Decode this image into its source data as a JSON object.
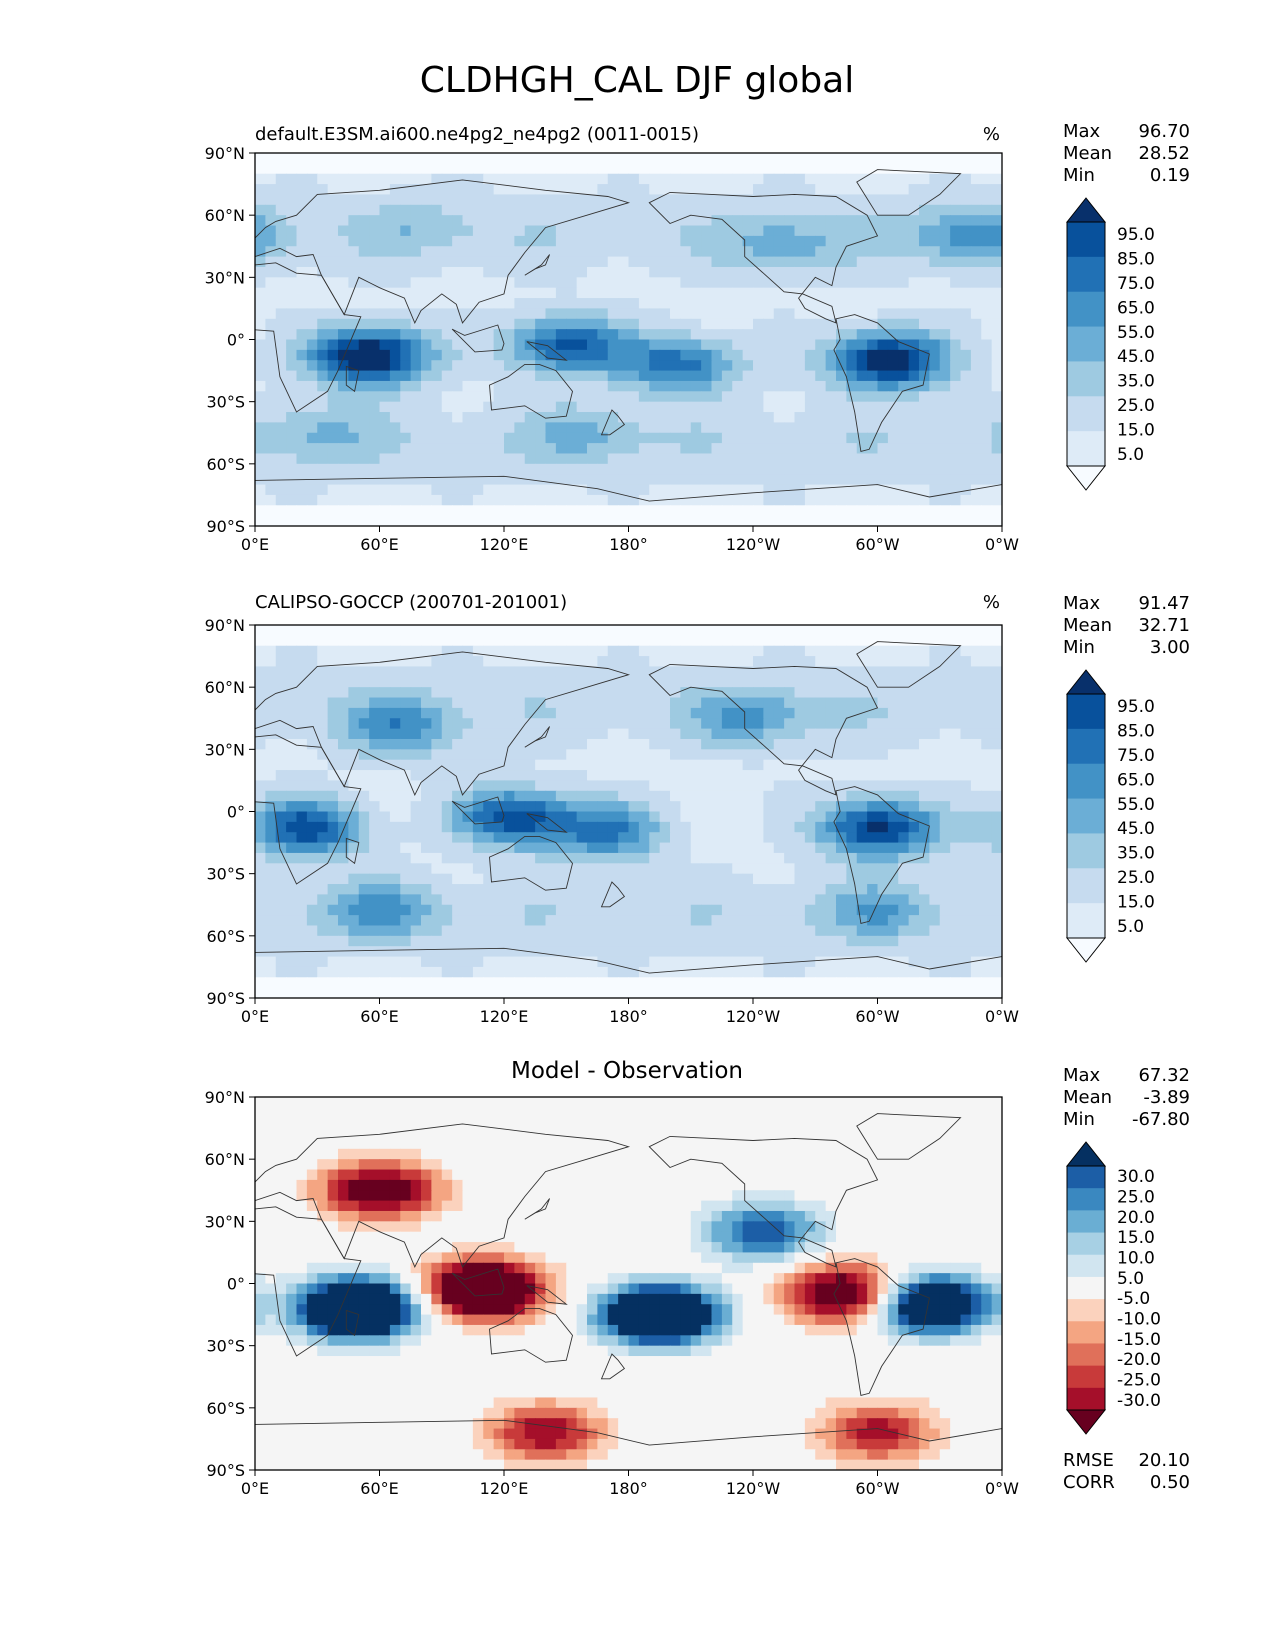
{
  "title": "CLDHGH_CAL DJF global",
  "chart_data": [
    {
      "type": "heatmap",
      "title": "default.E3SM.ai600.ne4pg2_ne4pg2 (0011-0015)",
      "units": "%",
      "x_ticks": [
        "0°E",
        "60°E",
        "120°E",
        "180°",
        "120°W",
        "60°W",
        "0°W"
      ],
      "y_ticks": [
        "90°N",
        "60°N",
        "30°N",
        "0°",
        "30°S",
        "60°S",
        "90°S"
      ],
      "xlim": [
        0,
        360
      ],
      "ylim": [
        -90,
        90
      ],
      "stats": [
        {
          "label": "Max",
          "value": "96.70"
        },
        {
          "label": "Mean",
          "value": "28.52"
        },
        {
          "label": "Min",
          "value": "0.19"
        }
      ],
      "colorbar": {
        "levels": [
          "95.0",
          "85.0",
          "75.0",
          "65.0",
          "55.0",
          "45.0",
          "35.0",
          "25.0",
          "15.0",
          "5.0"
        ],
        "colors": [
          "#f7fbff",
          "#deebf7",
          "#c6dbef",
          "#9ecae1",
          "#6baed6",
          "#4292c6",
          "#2171b5",
          "#08519c",
          "#08306b"
        ],
        "extend": "both"
      },
      "features": [
        {
          "lon": 55,
          "lat": -8,
          "value": 92
        },
        {
          "lon": 150,
          "lat": -3,
          "value": 70
        },
        {
          "lon": 205,
          "lat": -12,
          "value": 62
        },
        {
          "lon": 305,
          "lat": -10,
          "value": 88
        },
        {
          "lon": 80,
          "lat": 55,
          "value": 25
        },
        {
          "lon": 255,
          "lat": 45,
          "value": 35
        },
        {
          "lon": 345,
          "lat": 50,
          "value": 45
        },
        {
          "lon": 160,
          "lat": -45,
          "value": 30
        },
        {
          "lon": 30,
          "lat": -45,
          "value": 30
        }
      ]
    },
    {
      "type": "heatmap",
      "title": "CALIPSO-GOCCP (200701-201001)",
      "units": "%",
      "x_ticks": [
        "0°E",
        "60°E",
        "120°E",
        "180°",
        "120°W",
        "60°W",
        "0°W"
      ],
      "y_ticks": [
        "90°N",
        "60°N",
        "30°N",
        "0°",
        "30°S",
        "60°S",
        "90°S"
      ],
      "xlim": [
        0,
        360
      ],
      "ylim": [
        -90,
        90
      ],
      "stats": [
        {
          "label": "Max",
          "value": "91.47"
        },
        {
          "label": "Mean",
          "value": "32.71"
        },
        {
          "label": "Min",
          "value": "3.00"
        }
      ],
      "colorbar": {
        "levels": [
          "95.0",
          "85.0",
          "75.0",
          "65.0",
          "55.0",
          "45.0",
          "35.0",
          "25.0",
          "15.0",
          "5.0"
        ],
        "colors": [
          "#f7fbff",
          "#deebf7",
          "#c6dbef",
          "#9ecae1",
          "#6baed6",
          "#4292c6",
          "#2171b5",
          "#08519c",
          "#08306b"
        ],
        "extend": "both"
      },
      "features": [
        {
          "lon": 25,
          "lat": -8,
          "value": 70
        },
        {
          "lon": 125,
          "lat": -3,
          "value": 72
        },
        {
          "lon": 170,
          "lat": -10,
          "value": 55
        },
        {
          "lon": 300,
          "lat": -8,
          "value": 80
        },
        {
          "lon": 70,
          "lat": 40,
          "value": 45
        },
        {
          "lon": 240,
          "lat": 45,
          "value": 40
        },
        {
          "lon": 60,
          "lat": -48,
          "value": 40
        },
        {
          "lon": 300,
          "lat": -48,
          "value": 35
        }
      ]
    },
    {
      "type": "heatmap",
      "title": "Model - Observation",
      "x_ticks": [
        "0°E",
        "60°E",
        "120°E",
        "180°",
        "120°W",
        "60°W",
        "0°W"
      ],
      "y_ticks": [
        "90°N",
        "60°N",
        "30°N",
        "0°",
        "30°S",
        "60°S",
        "90°S"
      ],
      "xlim": [
        0,
        360
      ],
      "ylim": [
        -90,
        90
      ],
      "stats": [
        {
          "label": "Max",
          "value": "67.32"
        },
        {
          "label": "Mean",
          "value": "-3.89"
        },
        {
          "label": "Min",
          "value": "-67.80"
        }
      ],
      "stats2": [
        {
          "label": "RMSE",
          "value": "20.10"
        },
        {
          "label": "CORR",
          "value": "0.50"
        }
      ],
      "colorbar": {
        "levels": [
          "30.0",
          "25.0",
          "20.0",
          "15.0",
          "10.0",
          "5.0",
          "-5.0",
          "-10.0",
          "-15.0",
          "-20.0",
          "-25.0",
          "-30.0"
        ],
        "colors": [
          "#67001f",
          "#a50f2a",
          "#c83a3a",
          "#e0705a",
          "#f4a582",
          "#fbd2bd",
          "#f5f5f5",
          "#d1e5f0",
          "#a7d0e4",
          "#6aaed3",
          "#3a88c0",
          "#1c5ea6",
          "#053061"
        ],
        "extend": "both"
      },
      "features": [
        {
          "lon": 50,
          "lat": -12,
          "value": 67
        },
        {
          "lon": 110,
          "lat": -3,
          "value": -60
        },
        {
          "lon": 195,
          "lat": -15,
          "value": 62
        },
        {
          "lon": 285,
          "lat": -5,
          "value": -45
        },
        {
          "lon": 325,
          "lat": -10,
          "value": 55
        },
        {
          "lon": 60,
          "lat": 45,
          "value": -40
        },
        {
          "lon": 245,
          "lat": 25,
          "value": 30
        },
        {
          "lon": 140,
          "lat": -72,
          "value": -30
        },
        {
          "lon": 300,
          "lat": -72,
          "value": -28
        }
      ]
    }
  ]
}
